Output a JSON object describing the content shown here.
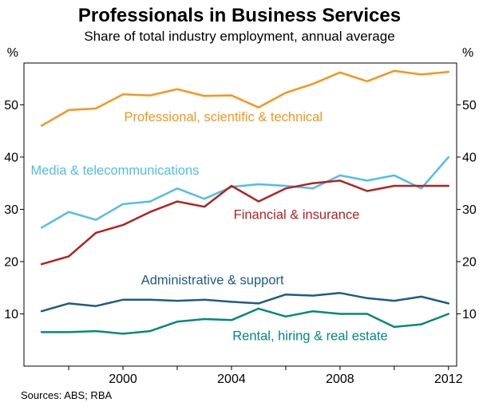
{
  "title": "Professionals in Business Services",
  "subtitle": "Share of total industry employment, annual average",
  "sources": "Sources: ABS; RBA",
  "axis_units": {
    "left": "%",
    "right": "%"
  },
  "chart_data": {
    "type": "line",
    "x": [
      1997,
      1998,
      1999,
      2000,
      2001,
      2002,
      2003,
      2004,
      2005,
      2006,
      2007,
      2008,
      2009,
      2010,
      2011,
      2012
    ],
    "x_ticks": [
      2000,
      2004,
      2008,
      2012
    ],
    "x_minor_ticks": [
      1998,
      2000,
      2002,
      2004,
      2006,
      2008,
      2010,
      2012
    ],
    "x_domain": [
      1996.35,
      2012.3
    ],
    "ylim": [
      0,
      58
    ],
    "y_ticks": [
      10,
      20,
      30,
      40,
      50
    ],
    "grid": false,
    "legend_position": "inline-labels",
    "series": [
      {
        "name": "Professional, scientific & technical",
        "color": "#F7941D",
        "values": [
          46.0,
          49.0,
          49.3,
          52.0,
          51.8,
          53.0,
          51.7,
          51.8,
          49.5,
          52.3,
          54.0,
          56.2,
          54.5,
          56.5,
          55.8,
          56.3
        ],
        "label_pos": {
          "x": 2003.7,
          "y": 47.5,
          "anchor": "middle"
        }
      },
      {
        "name": "Media & telecommunications",
        "color": "#4FBEE8",
        "values": [
          26.5,
          29.5,
          28.0,
          31.0,
          31.5,
          34.0,
          32.0,
          34.3,
          34.8,
          34.5,
          34.0,
          36.5,
          35.5,
          36.5,
          34.0,
          40.0
        ],
        "label_pos": {
          "x": 1996.6,
          "y": 37.3,
          "anchor": "start"
        }
      },
      {
        "name": "Financial & insurance",
        "color": "#B22222",
        "values": [
          19.5,
          21.0,
          25.5,
          27.0,
          29.5,
          31.5,
          30.5,
          34.5,
          31.5,
          34.0,
          35.0,
          35.5,
          33.5,
          34.5,
          34.5,
          34.5
        ],
        "label_pos": {
          "x": 2006.4,
          "y": 28.8,
          "anchor": "middle"
        }
      },
      {
        "name": "Administrative & support",
        "color": "#1C5C85",
        "values": [
          10.5,
          12.0,
          11.5,
          12.7,
          12.7,
          12.5,
          12.7,
          12.3,
          12.0,
          13.7,
          13.5,
          14.0,
          13.0,
          12.5,
          13.3,
          12.0
        ],
        "label_pos": {
          "x": 2003.3,
          "y": 16.3,
          "anchor": "middle"
        }
      },
      {
        "name": "Rental, hiring & real estate",
        "color": "#00897B",
        "values": [
          6.5,
          6.5,
          6.7,
          6.2,
          6.7,
          8.5,
          9.0,
          8.8,
          11.0,
          9.5,
          10.5,
          10.0,
          10.0,
          7.5,
          8.0,
          10.0
        ],
        "label_pos": {
          "x": 2006.9,
          "y": 5.6,
          "anchor": "middle"
        }
      }
    ]
  }
}
